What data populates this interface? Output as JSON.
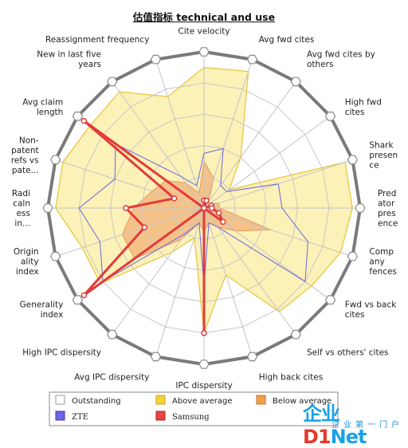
{
  "chart_data": {
    "type": "radar",
    "title": "估值指标 technical and use",
    "grid": true,
    "axes": [
      "Cite velocity",
      "Avg fwd cites",
      "Avg fwd cites by others",
      "High fwd cites",
      "Shark presence",
      "Predator presence",
      "Company fences",
      "Fwd vs back cites",
      "Self vs others' cites",
      "High back cites",
      "IPC dispersity",
      "Avg IPC dispersity",
      "High IPC dispersity",
      "Generality index",
      "Originality index",
      "Radicalness in...",
      "Non-patent refs vs pate...",
      "Avg claim length",
      "New in last five years",
      "Reassignment frequency"
    ],
    "axis_label_lines": [
      [
        "Cite velocity"
      ],
      [
        "Avg fwd cites"
      ],
      [
        "Avg fwd cites by",
        "others"
      ],
      [
        "High fwd",
        "cites"
      ],
      [
        "Shark",
        "presen",
        "ce"
      ],
      [
        "Pred",
        "ator",
        "pres",
        "ence"
      ],
      [
        "Comp",
        "any",
        "fences"
      ],
      [
        "Fwd vs back",
        "cites"
      ],
      [
        "Self vs others' cites"
      ],
      [
        "High back cites"
      ],
      [
        "IPC dispersity"
      ],
      [
        "Avg IPC dispersity"
      ],
      [
        "High IPC dispersity"
      ],
      [
        "Generality",
        "index"
      ],
      [
        "Origin",
        "ality",
        "index"
      ],
      [
        "Radi",
        "caln",
        "ess",
        "in..."
      ],
      [
        "Non-",
        "patent",
        "refs vs",
        "pate..."
      ],
      [
        "Avg claim",
        "length"
      ],
      [
        "New in last five",
        "years"
      ],
      [
        "Reassignment frequency"
      ]
    ],
    "range": [
      0,
      1
    ],
    "series": [
      {
        "name": "Outstanding",
        "color": "#ffffff",
        "values": [
          1,
          1,
          1,
          1,
          1,
          1,
          1,
          1,
          1,
          1,
          1,
          1,
          1,
          1,
          1,
          1,
          1,
          1,
          1,
          1
        ]
      },
      {
        "name": "Above average",
        "color": "#f3d23a",
        "values": [
          0.9,
          0.92,
          0.4,
          0.2,
          0.95,
          0.95,
          0.92,
          0.85,
          0.82,
          0.45,
          0.8,
          0.2,
          0.35,
          0.82,
          0.82,
          0.95,
          0.95,
          0.9,
          0.92,
          0.75
        ]
      },
      {
        "name": "Below average",
        "color": "#f0a04b",
        "values": [
          0.3,
          0.2,
          0.05,
          0.05,
          0.1,
          0.1,
          0.45,
          0.25,
          0.15,
          0.1,
          0.15,
          0.1,
          0.25,
          0.55,
          0.55,
          0.45,
          0.35,
          0.3,
          0.2,
          0.1
        ]
      },
      {
        "name": "ZTE",
        "color": "#5a55d8",
        "values": [
          0.35,
          0.4,
          0.18,
          0.18,
          0.5,
          0.5,
          0.7,
          0.8,
          0.15,
          0.1,
          0.5,
          0.1,
          0.2,
          0.8,
          0.7,
          0.8,
          0.6,
          0.7,
          0.25,
          0.15
        ]
      },
      {
        "name": "Samsung",
        "color": "#e23b3b",
        "values": [
          0.05,
          0.05,
          0.0,
          0.0,
          0.05,
          0.05,
          0.1,
          0.15,
          0.0,
          0.0,
          0.8,
          0.0,
          0.0,
          0.95,
          0.4,
          0.5,
          0.2,
          0.95,
          0.0,
          0.0
        ]
      }
    ]
  },
  "legend": [
    {
      "name": "Outstanding",
      "swatch": "#ffffff",
      "swatch_border": "#999999"
    },
    {
      "name": "Above average",
      "swatch": "#f3d23a",
      "swatch_border": "#c8a41a"
    },
    {
      "name": "Below average",
      "swatch": "#f0a04b",
      "swatch_border": "#c9782a"
    },
    {
      "name": "ZTE",
      "swatch": "#6a66e6",
      "swatch_border": "#3a36b0"
    },
    {
      "name": "Samsung",
      "swatch": "#e84545",
      "swatch_border": "#b02020"
    }
  ],
  "watermark": {
    "logo_prefix": "企业",
    "logo_d1": "D1",
    "logo_net": "Net",
    "subtitle": "企业第一门户"
  }
}
